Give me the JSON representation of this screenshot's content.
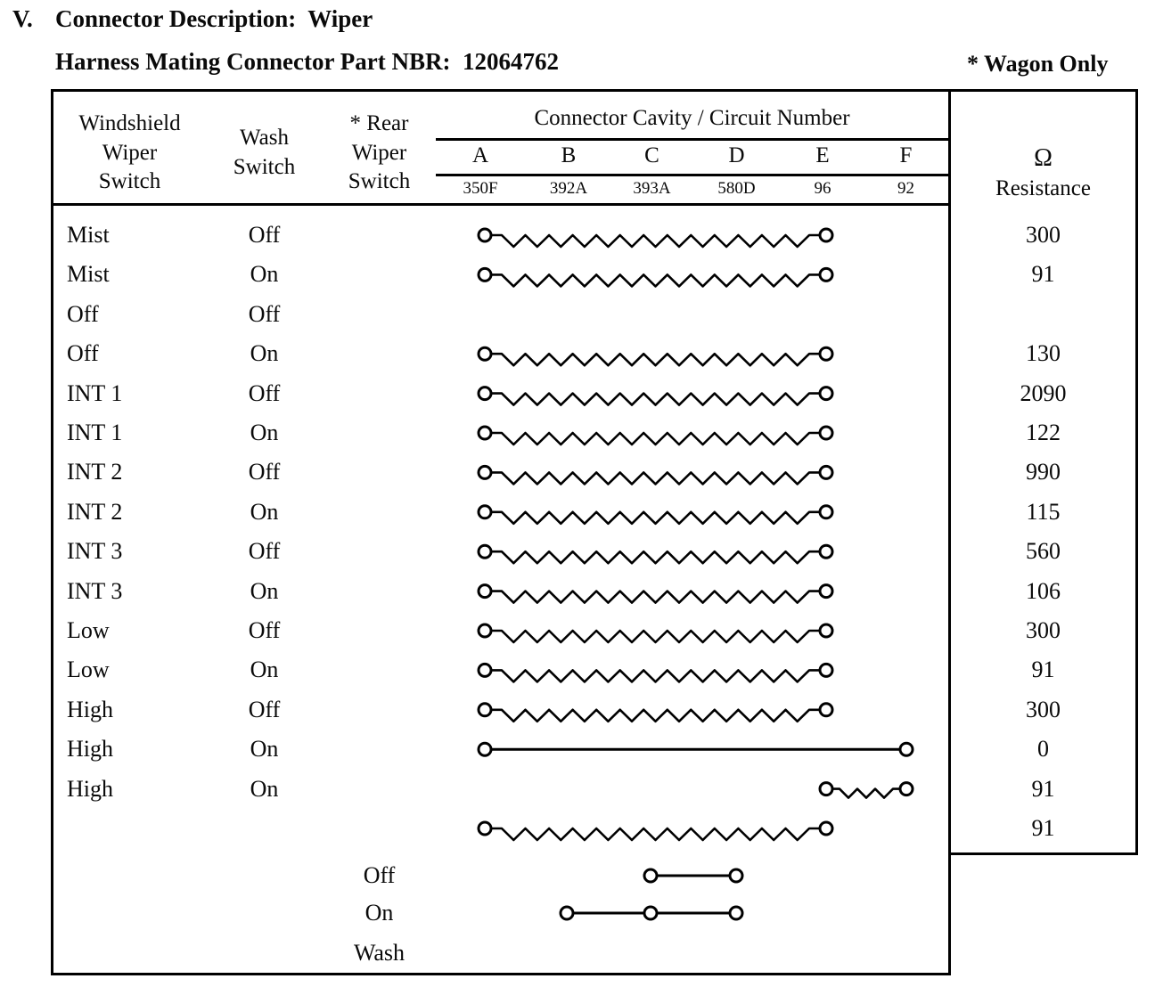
{
  "page": {
    "section_number": "V.",
    "title": "Connector Description:  Wiper",
    "part_number_line": "Harness Mating Connector Part NBR:  12064762",
    "wagon_note": "* Wagon Only"
  },
  "table": {
    "headers": {
      "wiper_switch": "Windshield\nWiper\nSwitch",
      "wash_switch": "Wash\nSwitch",
      "rear_wiper_switch": "* Rear\nWiper\nSwitch",
      "cavity_title": "Connector Cavity / Circuit Number",
      "resistance_symbol": "Ω",
      "resistance_label": "Resistance"
    },
    "cavities": [
      {
        "letter": "A",
        "circuit": "350F"
      },
      {
        "letter": "B",
        "circuit": "392A"
      },
      {
        "letter": "C",
        "circuit": "393A"
      },
      {
        "letter": "D",
        "circuit": "580D"
      },
      {
        "letter": "E",
        "circuit": "96"
      },
      {
        "letter": "F",
        "circuit": "92"
      }
    ],
    "rows": [
      {
        "wiper": "Mist",
        "wash": "Off",
        "circuit": {
          "type": "resistor",
          "nodes": [
            "A",
            "E"
          ]
        },
        "resistance": "300"
      },
      {
        "wiper": "Mist",
        "wash": "On",
        "circuit": {
          "type": "resistor",
          "nodes": [
            "A",
            "E"
          ]
        },
        "resistance": "91"
      },
      {
        "wiper": "Off",
        "wash": "Off",
        "circuit": null,
        "resistance": ""
      },
      {
        "wiper": "Off",
        "wash": "On",
        "circuit": {
          "type": "resistor",
          "nodes": [
            "A",
            "E"
          ]
        },
        "resistance": "130"
      },
      {
        "wiper": "INT 1",
        "wash": "Off",
        "circuit": {
          "type": "resistor",
          "nodes": [
            "A",
            "E"
          ]
        },
        "resistance": "2090"
      },
      {
        "wiper": "INT 1",
        "wash": "On",
        "circuit": {
          "type": "resistor",
          "nodes": [
            "A",
            "E"
          ]
        },
        "resistance": "122"
      },
      {
        "wiper": "INT 2",
        "wash": "Off",
        "circuit": {
          "type": "resistor",
          "nodes": [
            "A",
            "E"
          ]
        },
        "resistance": "990"
      },
      {
        "wiper": "INT 2",
        "wash": "On",
        "circuit": {
          "type": "resistor",
          "nodes": [
            "A",
            "E"
          ]
        },
        "resistance": "115"
      },
      {
        "wiper": "INT 3",
        "wash": "Off",
        "circuit": {
          "type": "resistor",
          "nodes": [
            "A",
            "E"
          ]
        },
        "resistance": "560"
      },
      {
        "wiper": "INT 3",
        "wash": "On",
        "circuit": {
          "type": "resistor",
          "nodes": [
            "A",
            "E"
          ]
        },
        "resistance": "106"
      },
      {
        "wiper": "Low",
        "wash": "Off",
        "circuit": {
          "type": "resistor",
          "nodes": [
            "A",
            "E"
          ]
        },
        "resistance": "300"
      },
      {
        "wiper": "Low",
        "wash": "On",
        "circuit": {
          "type": "resistor",
          "nodes": [
            "A",
            "E"
          ]
        },
        "resistance": "91"
      },
      {
        "wiper": "High",
        "wash": "Off",
        "circuit": {
          "type": "resistor",
          "nodes": [
            "A",
            "E"
          ]
        },
        "resistance": "300"
      },
      {
        "wiper": "High",
        "wash": "On",
        "circuit": {
          "type": "wire",
          "nodes": [
            "A",
            "F"
          ]
        },
        "resistance": "0"
      },
      {
        "wiper": "High",
        "wash": "On",
        "circuit": {
          "type": "resistor",
          "nodes": [
            "E",
            "F"
          ]
        },
        "resistance": "91"
      },
      {
        "wiper": "",
        "wash": "",
        "circuit": {
          "type": "resistor",
          "nodes": [
            "A",
            "E"
          ]
        },
        "resistance": "91"
      }
    ],
    "rear_rows": [
      {
        "rear": "Off",
        "circuit": {
          "type": "wire",
          "nodes": [
            "C",
            "D"
          ]
        }
      },
      {
        "rear": "On",
        "circuit": {
          "type": "wire",
          "nodes": [
            "B",
            "C",
            "D"
          ]
        }
      },
      {
        "rear": "Wash",
        "circuit": null
      }
    ]
  }
}
